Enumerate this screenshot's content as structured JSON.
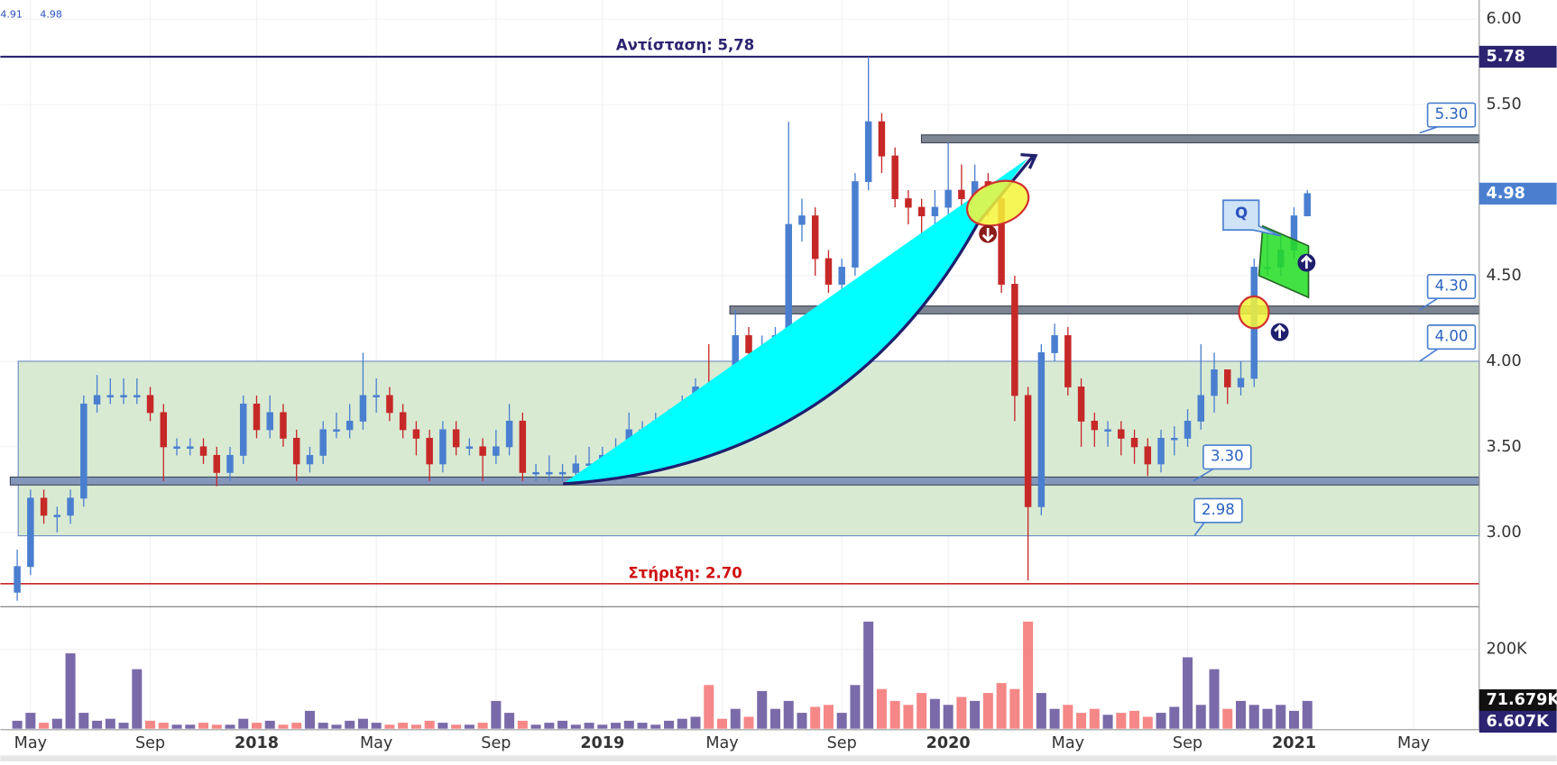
{
  "chart_data": {
    "type": "candlestick",
    "categories": [
      null,
      "May",
      null,
      null,
      null,
      null,
      null,
      null,
      null,
      null,
      "Sep",
      null,
      null,
      null,
      null,
      null,
      null,
      null,
      "2018",
      null,
      null,
      null,
      null,
      null,
      null,
      null,
      null,
      "May",
      null,
      null,
      null,
      null,
      null,
      null,
      null,
      null,
      "Sep",
      null,
      null,
      null,
      null,
      null,
      null,
      null,
      "2019",
      null,
      null,
      null,
      null,
      null,
      null,
      null,
      null,
      "May",
      null,
      null,
      null,
      null,
      null,
      null,
      null,
      null,
      "Sep",
      null,
      null,
      null,
      null,
      null,
      null,
      null,
      "2020",
      null,
      null,
      null,
      null,
      null,
      null,
      null,
      null,
      "May",
      null,
      null,
      null,
      null,
      null,
      null,
      null,
      null,
      "Sep",
      null,
      null,
      null,
      null,
      null,
      null,
      null,
      "2021",
      null,
      null,
      null,
      null,
      null,
      null,
      null,
      null,
      "May",
      null,
      null,
      null,
      null
    ],
    "open": [
      2.65,
      2.8,
      3.2,
      3.1,
      3.1,
      3.2,
      3.75,
      3.8,
      3.8,
      3.8,
      3.8,
      3.7,
      3.5,
      3.5,
      3.5,
      3.45,
      3.35,
      3.45,
      3.75,
      3.6,
      3.7,
      3.55,
      3.4,
      3.45,
      3.6,
      3.6,
      3.65,
      3.8,
      3.8,
      3.7,
      3.6,
      3.55,
      3.4,
      3.6,
      3.5,
      3.5,
      3.45,
      3.5,
      3.65,
      3.35,
      3.35,
      3.35,
      3.35,
      3.4,
      3.4,
      3.45,
      3.45,
      3.6,
      3.6,
      3.65,
      3.65,
      3.7,
      3.85,
      3.8,
      3.65,
      4.15,
      4.05,
      4.05,
      4.15,
      4.8,
      4.85,
      4.6,
      4.45,
      4.55,
      5.05,
      5.4,
      5.2,
      4.95,
      4.9,
      4.85,
      4.9,
      5.0,
      4.95,
      5.05,
      4.95,
      4.45,
      3.8,
      3.15,
      4.05,
      4.15,
      3.85,
      3.65,
      3.6,
      3.6,
      3.55,
      3.5,
      3.4,
      3.55,
      3.55,
      3.65,
      3.8,
      3.95,
      3.85,
      3.9,
      4.55,
      4.55,
      4.65,
      4.85,
      null,
      null,
      null,
      null,
      null,
      null,
      null,
      null,
      null,
      null,
      null,
      null
    ],
    "high": [
      2.9,
      3.25,
      3.25,
      3.15,
      3.25,
      3.8,
      3.92,
      3.9,
      3.9,
      3.9,
      3.85,
      3.75,
      3.55,
      3.55,
      3.55,
      3.5,
      3.5,
      3.8,
      3.8,
      3.8,
      3.75,
      3.6,
      3.5,
      3.65,
      3.7,
      3.75,
      4.05,
      3.9,
      3.85,
      3.75,
      3.65,
      3.6,
      3.65,
      3.65,
      3.55,
      3.55,
      3.6,
      3.75,
      3.7,
      3.4,
      3.45,
      3.4,
      3.45,
      3.5,
      3.5,
      3.55,
      3.7,
      3.65,
      3.7,
      3.72,
      3.8,
      3.9,
      4.1,
      3.85,
      4.3,
      4.2,
      4.15,
      4.2,
      5.4,
      4.95,
      4.9,
      4.65,
      4.6,
      5.1,
      5.78,
      5.45,
      5.25,
      5.0,
      4.95,
      5.0,
      5.28,
      5.15,
      5.15,
      5.1,
      5.0,
      4.5,
      3.85,
      4.1,
      4.22,
      4.2,
      3.9,
      3.7,
      3.65,
      3.65,
      3.6,
      3.55,
      3.6,
      3.62,
      3.72,
      4.1,
      4.05,
      3.95,
      4.0,
      4.6,
      4.75,
      4.75,
      4.9,
      5.0,
      null,
      null,
      null,
      null,
      null,
      null,
      null,
      null,
      null,
      null,
      null,
      null
    ],
    "low": [
      2.6,
      2.75,
      3.05,
      3.0,
      3.05,
      3.15,
      3.7,
      3.75,
      3.75,
      3.75,
      3.65,
      3.3,
      3.45,
      3.45,
      3.4,
      3.27,
      3.3,
      3.4,
      3.55,
      3.55,
      3.5,
      3.3,
      3.35,
      3.4,
      3.55,
      3.55,
      3.6,
      3.7,
      3.65,
      3.55,
      3.45,
      3.3,
      3.35,
      3.45,
      3.45,
      3.3,
      3.4,
      3.45,
      3.3,
      3.3,
      3.3,
      3.3,
      3.3,
      3.35,
      3.35,
      3.4,
      3.4,
      3.55,
      3.55,
      3.6,
      3.6,
      3.65,
      3.75,
      3.55,
      3.6,
      4.0,
      3.95,
      4.0,
      4.1,
      4.7,
      4.5,
      4.4,
      4.35,
      4.5,
      5.0,
      5.1,
      4.9,
      4.8,
      4.75,
      4.8,
      4.85,
      4.9,
      4.9,
      4.85,
      4.4,
      3.65,
      2.72,
      3.1,
      4.0,
      3.8,
      3.5,
      3.5,
      3.5,
      3.45,
      3.4,
      3.33,
      3.35,
      3.45,
      3.5,
      3.6,
      3.7,
      3.75,
      3.8,
      3.85,
      4.5,
      4.5,
      4.6,
      4.85,
      null,
      null,
      null,
      null,
      null,
      null,
      null,
      null,
      null,
      null,
      null,
      null
    ],
    "close": [
      2.8,
      3.2,
      3.1,
      3.1,
      3.2,
      3.75,
      3.8,
      3.8,
      3.8,
      3.8,
      3.7,
      3.5,
      3.5,
      3.5,
      3.45,
      3.35,
      3.45,
      3.75,
      3.6,
      3.7,
      3.55,
      3.4,
      3.45,
      3.6,
      3.6,
      3.65,
      3.8,
      3.8,
      3.7,
      3.6,
      3.55,
      3.4,
      3.6,
      3.5,
      3.5,
      3.45,
      3.5,
      3.65,
      3.35,
      3.35,
      3.35,
      3.35,
      3.4,
      3.4,
      3.45,
      3.45,
      3.6,
      3.6,
      3.65,
      3.65,
      3.7,
      3.85,
      3.8,
      3.65,
      4.15,
      4.05,
      4.05,
      4.15,
      4.8,
      4.85,
      4.6,
      4.45,
      4.55,
      5.05,
      5.4,
      5.2,
      4.95,
      4.9,
      4.85,
      4.9,
      5.0,
      4.95,
      5.05,
      4.95,
      4.45,
      3.8,
      3.15,
      4.05,
      4.15,
      3.85,
      3.65,
      3.6,
      3.6,
      3.55,
      3.5,
      3.4,
      3.55,
      3.55,
      3.65,
      3.8,
      3.95,
      3.85,
      3.9,
      4.55,
      4.55,
      4.65,
      4.85,
      4.98,
      null,
      null,
      null,
      null,
      null,
      null,
      null,
      null,
      null,
      null,
      null,
      null
    ],
    "volume": [
      20,
      40,
      15,
      25,
      190,
      40,
      20,
      25,
      15,
      150,
      20,
      15,
      10,
      10,
      15,
      10,
      10,
      25,
      15,
      20,
      10,
      15,
      45,
      15,
      10,
      20,
      25,
      15,
      10,
      15,
      10,
      20,
      15,
      10,
      10,
      15,
      70,
      40,
      20,
      10,
      15,
      20,
      10,
      15,
      10,
      15,
      20,
      15,
      10,
      20,
      25,
      30,
      110,
      25,
      50,
      30,
      95,
      50,
      70,
      40,
      55,
      60,
      40,
      110,
      270,
      100,
      70,
      60,
      90,
      75,
      60,
      80,
      70,
      90,
      115,
      100,
      270,
      90,
      50,
      60,
      40,
      50,
      35,
      40,
      45,
      30,
      40,
      55,
      180,
      60,
      150,
      50,
      70,
      60,
      50,
      60,
      45,
      70,
      null,
      null,
      null,
      null,
      null,
      null,
      null,
      null,
      null,
      null,
      null,
      null
    ],
    "up_color": "#4a7fd0",
    "down_color": "#c62828",
    "volume_up_color": "#6b5aa0",
    "volume_down_color": "#f47a7a",
    "ylim": [
      2.6,
      6.1
    ],
    "yticks": [
      {
        "value": 3,
        "label": "3.00"
      },
      {
        "value": 3.5,
        "label": "3.50"
      },
      {
        "value": 4,
        "label": "4.00"
      },
      {
        "value": 4.5,
        "label": "4.50"
      },
      {
        "value": 5,
        "label": "5.00"
      },
      {
        "value": 5.5,
        "label": "5.50"
      },
      {
        "value": 6,
        "label": "6.00"
      }
    ],
    "volume_ylim": [
      0,
      300
    ],
    "volume_yticks": [
      {
        "value": 200,
        "label": "200K"
      }
    ],
    "volume_markers": [
      {
        "value": 71.679,
        "label": "71.679K"
      },
      {
        "value": 6.607,
        "label": "6.607K"
      }
    ],
    "grid": true,
    "ohlc_header": [
      4.91,
      4.98
    ],
    "resistance": {
      "value": 5.78,
      "text": "Αντίσταση: 5,78"
    },
    "support": {
      "value": 2.7,
      "text": "Στήριξη: 2.70"
    },
    "zones": [
      {
        "value": 5.3,
        "label": "5.30"
      },
      {
        "value": 4.3,
        "label": "4.30"
      },
      {
        "value": 3.3,
        "label": "3.30"
      }
    ],
    "box": {
      "low": {
        "value": 2.98,
        "label": "2.98"
      },
      "high": {
        "value": 4,
        "label": "4.00"
      }
    },
    "q_label": "Q"
  }
}
